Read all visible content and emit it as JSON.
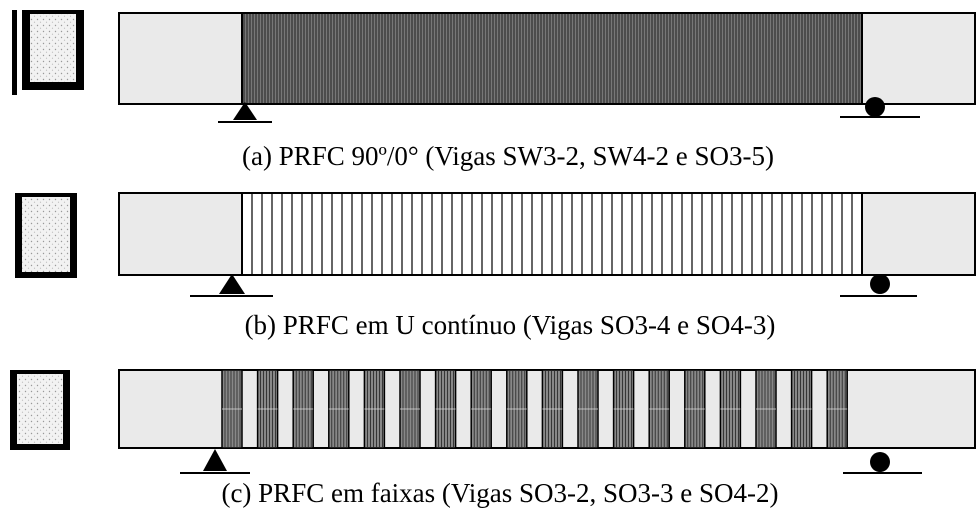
{
  "captions": [
    "(a) PRFC 90º/0° (Vigas SW3-2, SW4-2 e SO3-5)",
    "(b) PRFC em U contínuo (Vigas SO3-4 e SO4-3)",
    "(c) PRFC em faixas (Vigas SO3-2, SO3-3 e SO4-2)"
  ]
}
